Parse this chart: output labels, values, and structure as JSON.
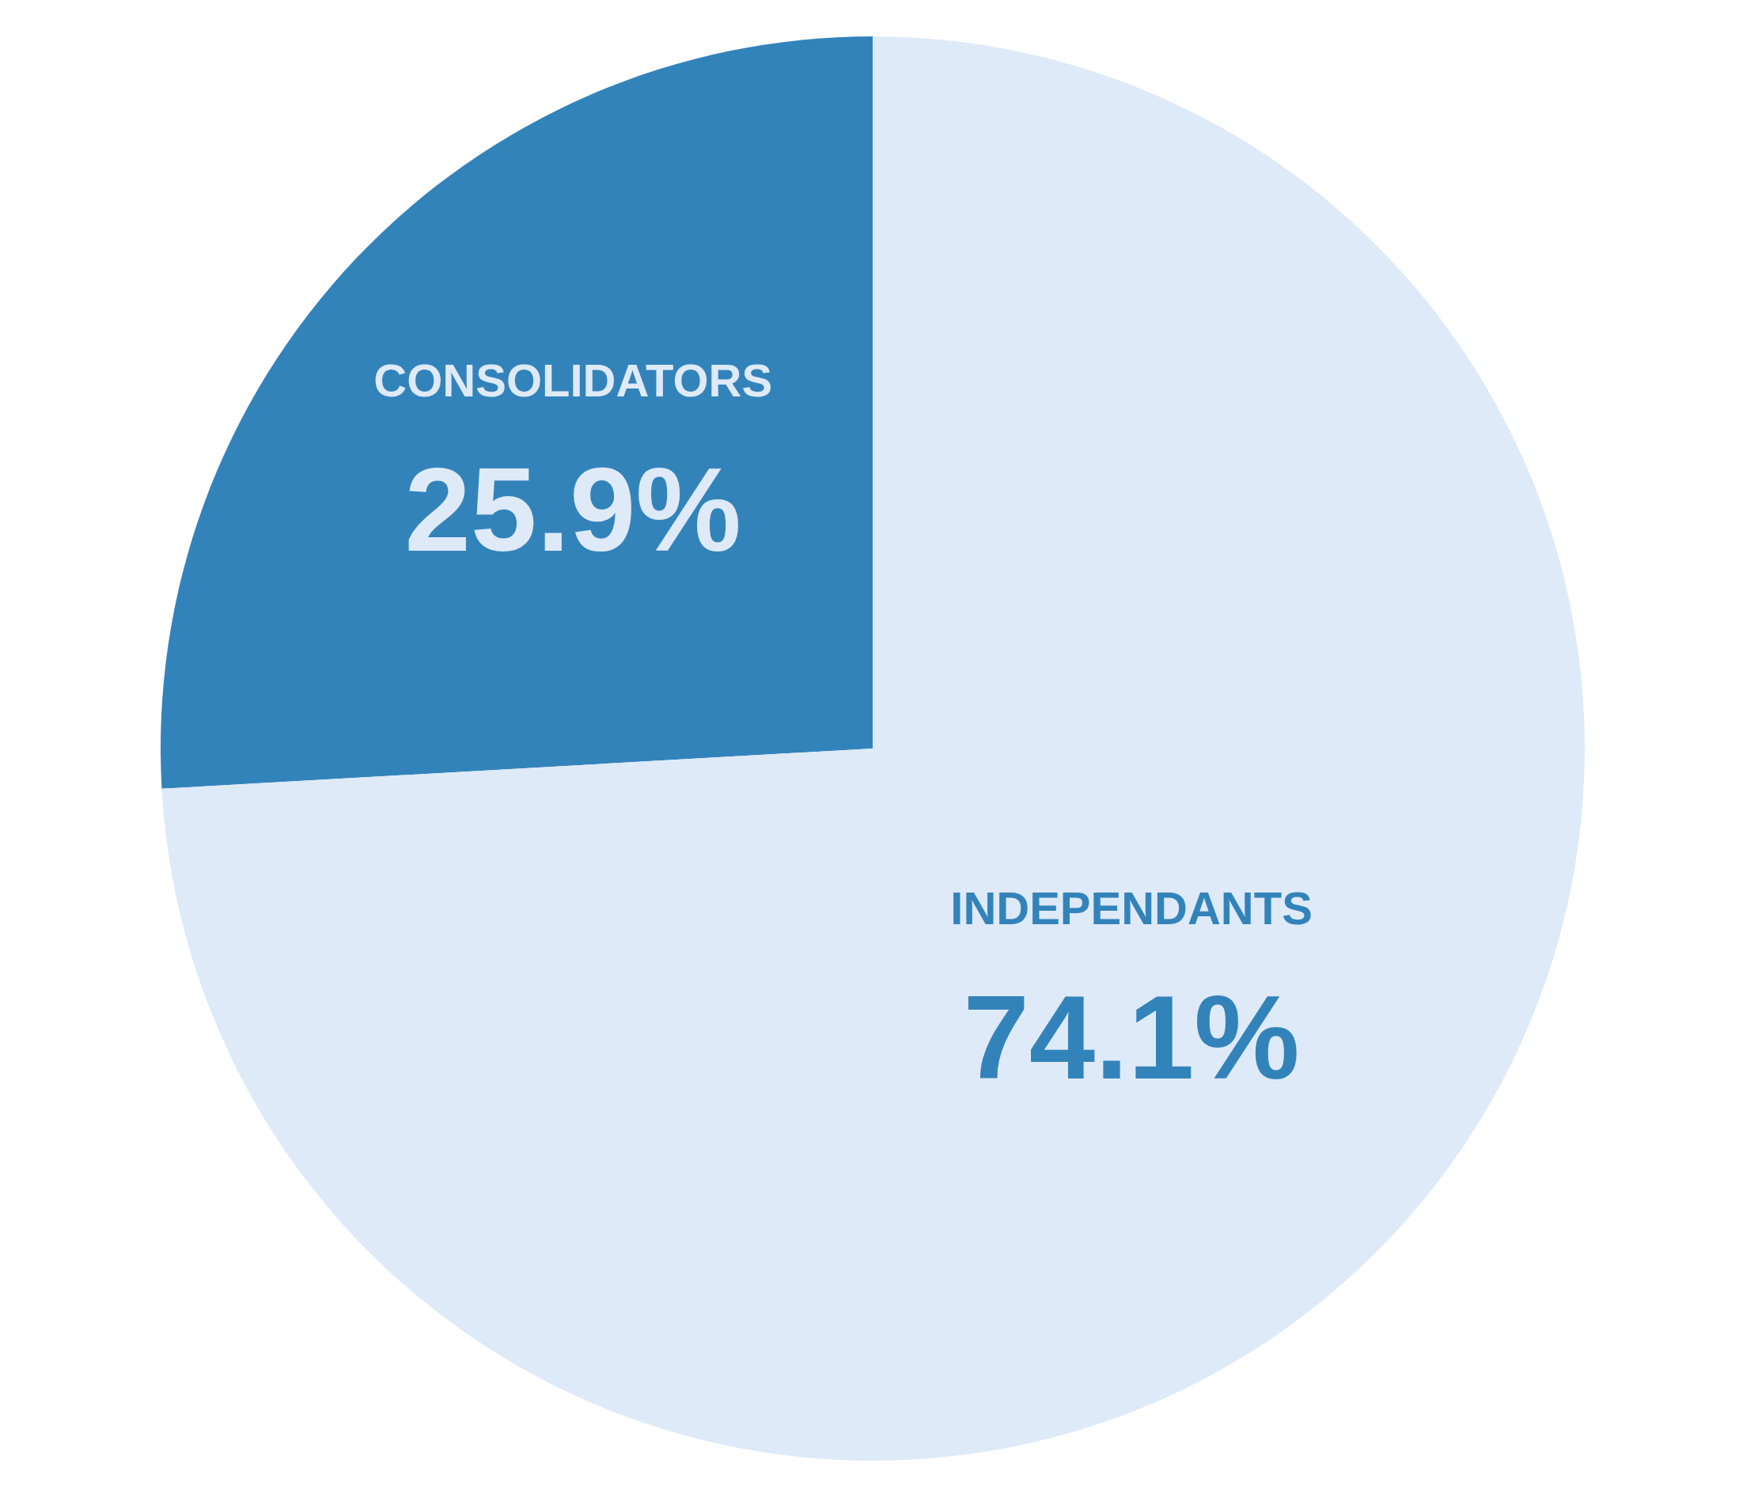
{
  "chart_data": {
    "type": "pie",
    "categories": [
      "CONSOLIDATORS",
      "INDEPENDANTS"
    ],
    "values": [
      25.9,
      74.1
    ],
    "value_labels": [
      "25.9%",
      "74.1%"
    ],
    "colors": [
      "#3383bb",
      "#deeaf7"
    ],
    "legend": false
  }
}
